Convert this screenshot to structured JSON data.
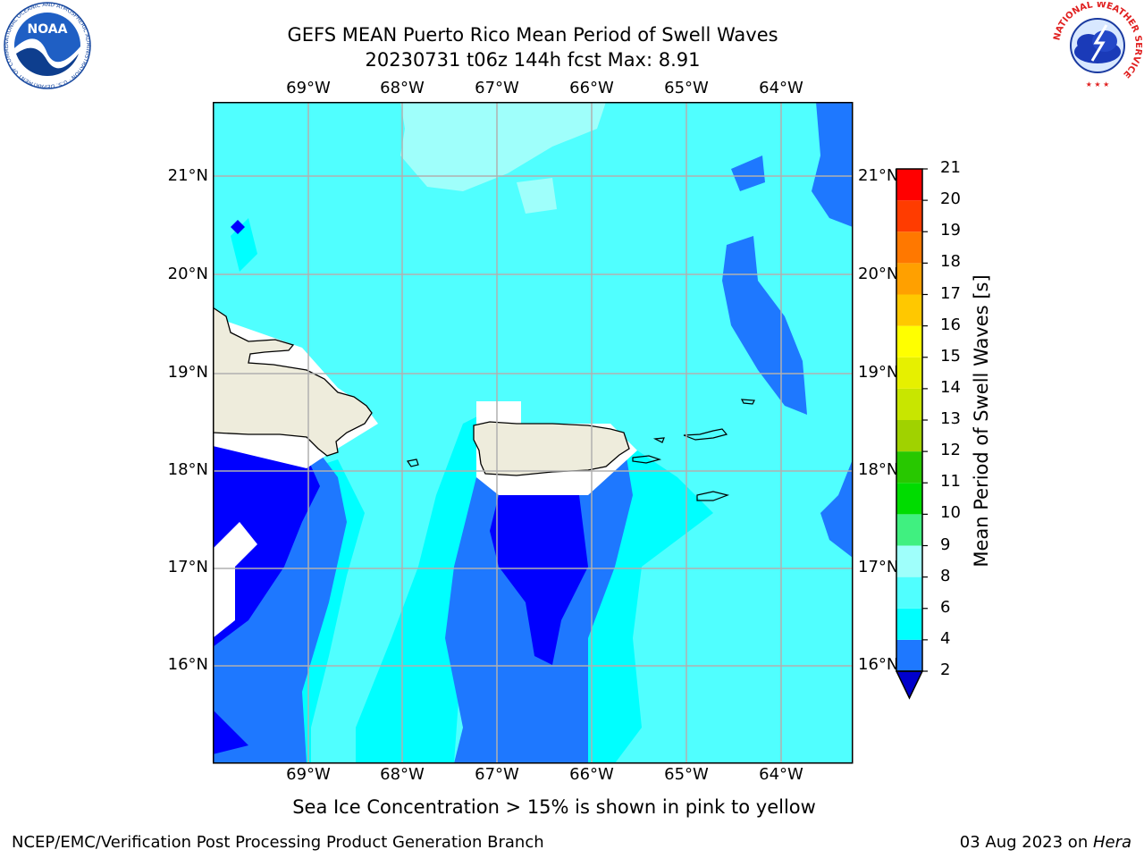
{
  "title": {
    "line1": "GEFS MEAN Puerto Rico Mean Period of Swell Waves",
    "line2": "20230731 t06z 144h fcst   Max: 8.91"
  },
  "map": {
    "lon_labels": [
      "69°W",
      "68°W",
      "67°W",
      "66°W",
      "65°W",
      "64°W"
    ],
    "lat_labels": [
      "21°N",
      "20°N",
      "19°N",
      "18°N",
      "17°N",
      "16°N"
    ],
    "land_color": "#eeecdc",
    "grid_color": "#b0b0b0"
  },
  "colorbar": {
    "label": "Mean Period of Swell Waves [s]",
    "ticks": [
      "2",
      "4",
      "6",
      "8",
      "9",
      "10",
      "11",
      "12",
      "13",
      "14",
      "15",
      "16",
      "17",
      "18",
      "19",
      "20",
      "21"
    ],
    "colors": [
      "#0000ff",
      "#1e78ff",
      "#00ffff",
      "#50ffff",
      "#9ffffb",
      "#40f080",
      "#00dc00",
      "#28c800",
      "#a0d200",
      "#c8e600",
      "#e6f000",
      "#ffff00",
      "#ffc800",
      "#ffa000",
      "#ff7800",
      "#ff3c00",
      "#ff0000"
    ],
    "under_color": "#0000cc"
  },
  "ice_note": "Sea Ice Concentration > 15% is shown in pink to yellow",
  "footer": {
    "left": "NCEP/EMC/Verification Post Processing Product Generation Branch",
    "right_prefix": "03 Aug 2023 on ",
    "right_host": "Hera"
  },
  "logos": {
    "left": "noaa-logo",
    "right": "nws-logo",
    "left_text": "NOAA",
    "left_ring": "NATIONAL OCEANIC AND ATMOSPHERIC ADMINISTRATION · U.S. DEPARTMENT OF COMMERCE",
    "right_ring": "NATIONAL WEATHER SERVICE"
  }
}
